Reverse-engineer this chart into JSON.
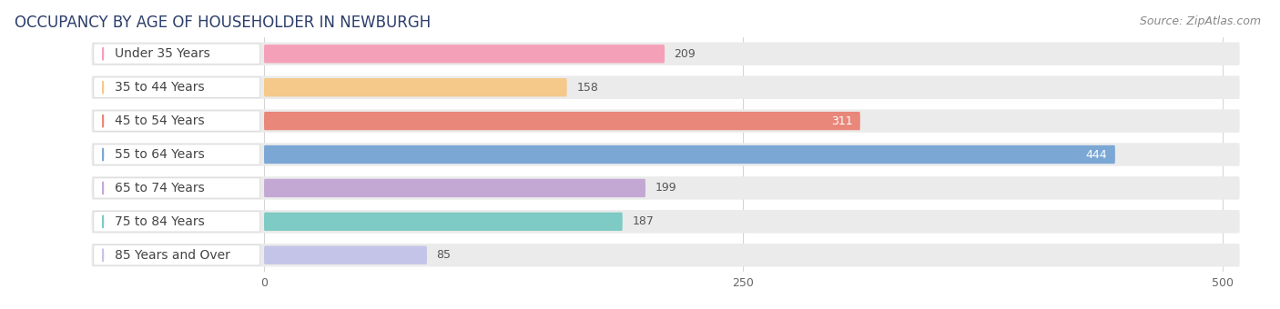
{
  "title": "OCCUPANCY BY AGE OF HOUSEHOLDER IN NEWBURGH",
  "source": "Source: ZipAtlas.com",
  "categories": [
    "Under 35 Years",
    "35 to 44 Years",
    "45 to 54 Years",
    "55 to 64 Years",
    "65 to 74 Years",
    "75 to 84 Years",
    "85 Years and Over"
  ],
  "values": [
    209,
    158,
    311,
    444,
    199,
    187,
    85
  ],
  "bar_colors": [
    "#f4a0b8",
    "#f5c98a",
    "#e8877a",
    "#7ba7d4",
    "#c4a8d4",
    "#7ecac4",
    "#c4c4e8"
  ],
  "value_inside": [
    false,
    false,
    true,
    true,
    false,
    false,
    false
  ],
  "xlim_data": [
    0,
    500
  ],
  "xticks": [
    0,
    250,
    500
  ],
  "background_color": "#ffffff",
  "bar_bg_color": "#ebebeb",
  "title_fontsize": 12,
  "source_fontsize": 9,
  "label_fontsize": 10,
  "value_fontsize": 9,
  "bar_height": 0.55,
  "figsize": [
    14.06,
    3.4
  ],
  "dpi": 100
}
